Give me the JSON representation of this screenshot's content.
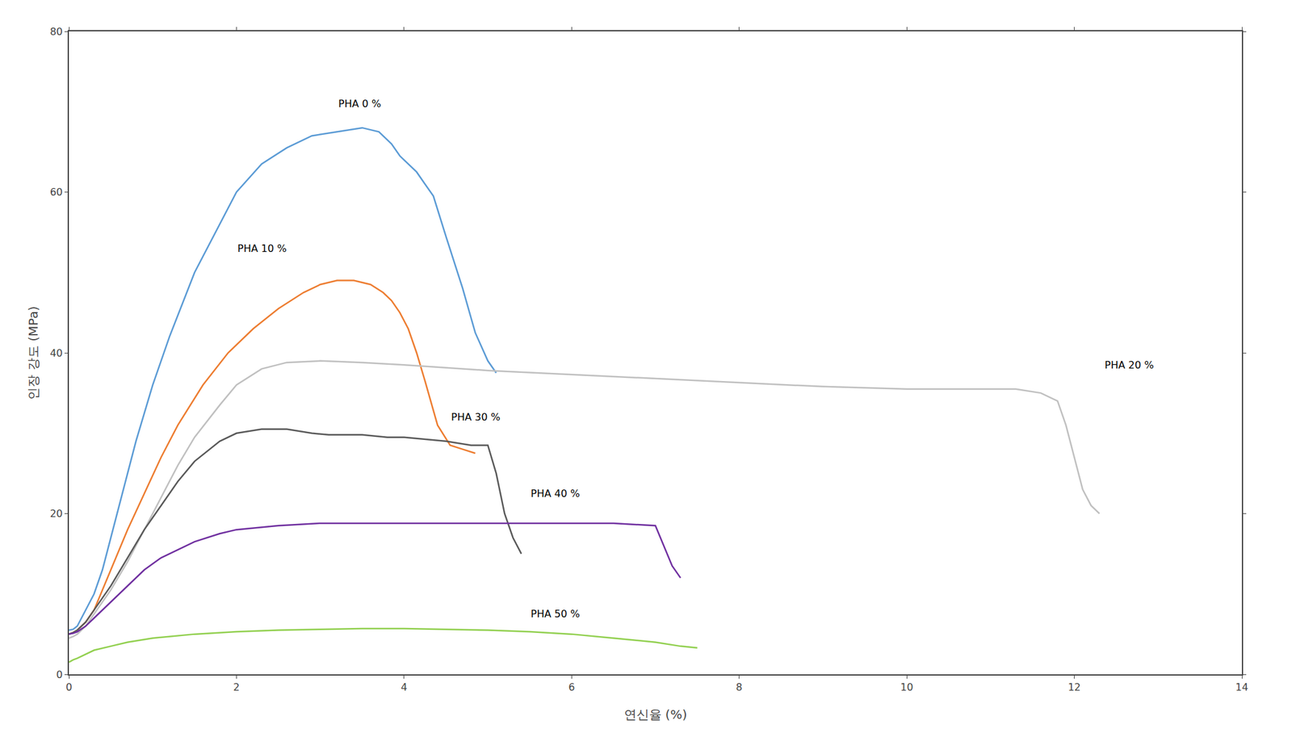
{
  "chart_data": {
    "type": "line",
    "x_label": "연신율 (%)",
    "y_label": "인장 강도 (MPa)",
    "xlim": [
      0,
      14
    ],
    "ylim": [
      0,
      80
    ],
    "xticks": [
      0,
      2,
      4,
      6,
      8,
      10,
      12,
      14
    ],
    "yticks": [
      0,
      20,
      40,
      60,
      80
    ],
    "grid": false,
    "series": [
      {
        "name": "PHA 0 %",
        "color": "#5B9BD5",
        "x": [
          0.0,
          0.05,
          0.1,
          0.15,
          0.2,
          0.3,
          0.4,
          0.5,
          0.6,
          0.7,
          0.8,
          1.0,
          1.2,
          1.5,
          1.8,
          2.0,
          2.3,
          2.6,
          2.9,
          3.2,
          3.5,
          3.7,
          3.85,
          3.95,
          4.05,
          4.15,
          4.25,
          4.35,
          4.5,
          4.7,
          4.85,
          5.0,
          5.1
        ],
        "values": [
          5.5,
          5.6,
          6.0,
          7.0,
          8.0,
          10.0,
          13.0,
          17.0,
          21.0,
          25.0,
          29.0,
          36.0,
          42.0,
          50.0,
          56.0,
          60.0,
          63.5,
          65.5,
          67.0,
          67.5,
          68.0,
          67.5,
          66.0,
          64.5,
          63.5,
          62.5,
          61.0,
          59.5,
          54.5,
          48.0,
          42.5,
          39.0,
          37.5
        ]
      },
      {
        "name": "PHA 10 %",
        "color": "#ED7D31",
        "x": [
          0.0,
          0.05,
          0.1,
          0.2,
          0.3,
          0.4,
          0.5,
          0.7,
          0.9,
          1.1,
          1.3,
          1.6,
          1.9,
          2.2,
          2.5,
          2.8,
          3.0,
          3.2,
          3.4,
          3.6,
          3.75,
          3.85,
          3.95,
          4.05,
          4.15,
          4.25,
          4.4,
          4.55,
          4.7,
          4.85
        ],
        "values": [
          5.0,
          5.2,
          5.5,
          6.5,
          8.0,
          10.5,
          13.0,
          18.0,
          22.5,
          27.0,
          31.0,
          36.0,
          40.0,
          43.0,
          45.5,
          47.5,
          48.5,
          49.0,
          49.0,
          48.5,
          47.5,
          46.5,
          45.0,
          43.0,
          40.0,
          36.5,
          31.0,
          28.5,
          28.0,
          27.5
        ]
      },
      {
        "name": "PHA 20 %",
        "color": "#C0C0C0",
        "x": [
          0.0,
          0.05,
          0.1,
          0.2,
          0.3,
          0.5,
          0.7,
          0.9,
          1.1,
          1.3,
          1.5,
          1.8,
          2.0,
          2.3,
          2.6,
          3.0,
          3.5,
          4.0,
          5.0,
          6.0,
          7.0,
          8.0,
          9.0,
          10.0,
          10.5,
          11.0,
          11.3,
          11.6,
          11.8,
          11.9,
          12.0,
          12.1,
          12.2,
          12.3
        ],
        "values": [
          4.5,
          4.7,
          5.0,
          6.0,
          7.5,
          10.5,
          14.0,
          18.0,
          22.0,
          26.0,
          29.5,
          33.5,
          36.0,
          38.0,
          38.8,
          39.0,
          38.8,
          38.5,
          37.8,
          37.3,
          36.8,
          36.3,
          35.8,
          35.5,
          35.5,
          35.5,
          35.5,
          35.0,
          34.0,
          31.0,
          27.0,
          23.0,
          21.0,
          20.0
        ]
      },
      {
        "name": "PHA 30 %",
        "color": "#595959",
        "x": [
          0.0,
          0.05,
          0.1,
          0.2,
          0.3,
          0.5,
          0.7,
          0.9,
          1.1,
          1.3,
          1.5,
          1.8,
          2.0,
          2.3,
          2.6,
          2.9,
          3.1,
          3.3,
          3.5,
          3.8,
          4.0,
          4.5,
          4.8,
          5.0,
          5.1,
          5.2,
          5.3,
          5.4
        ],
        "values": [
          5.0,
          5.2,
          5.5,
          6.5,
          8.0,
          11.0,
          14.5,
          18.0,
          21.0,
          24.0,
          26.5,
          29.0,
          30.0,
          30.5,
          30.5,
          30.0,
          29.8,
          29.8,
          29.8,
          29.5,
          29.5,
          29.0,
          28.5,
          28.5,
          25.0,
          20.0,
          17.0,
          15.0
        ]
      },
      {
        "name": "PHA 40 %",
        "color": "#7030A0",
        "x": [
          0.0,
          0.05,
          0.1,
          0.2,
          0.3,
          0.5,
          0.7,
          0.9,
          1.1,
          1.3,
          1.5,
          1.8,
          2.0,
          2.5,
          3.0,
          3.5,
          4.0,
          4.5,
          5.0,
          5.5,
          6.0,
          6.5,
          7.0,
          7.1,
          7.2,
          7.3
        ],
        "values": [
          5.0,
          5.1,
          5.3,
          6.0,
          7.0,
          9.0,
          11.0,
          13.0,
          14.5,
          15.5,
          16.5,
          17.5,
          18.0,
          18.5,
          18.8,
          18.8,
          18.8,
          18.8,
          18.8,
          18.8,
          18.8,
          18.8,
          18.5,
          16.0,
          13.5,
          12.0
        ]
      },
      {
        "name": "PHA 50 %",
        "color": "#92D050",
        "x": [
          0.0,
          0.05,
          0.1,
          0.2,
          0.3,
          0.5,
          0.7,
          1.0,
          1.5,
          2.0,
          2.5,
          3.0,
          3.5,
          4.0,
          4.5,
          5.0,
          5.5,
          6.0,
          6.5,
          7.0,
          7.3,
          7.5
        ],
        "values": [
          1.5,
          1.8,
          2.0,
          2.5,
          3.0,
          3.5,
          4.0,
          4.5,
          5.0,
          5.3,
          5.5,
          5.6,
          5.7,
          5.7,
          5.6,
          5.5,
          5.3,
          5.0,
          4.5,
          4.0,
          3.5,
          3.3
        ]
      }
    ],
    "annotations": [
      {
        "text": "PHA 0 %",
        "x": 3.2,
        "y": 71.0
      },
      {
        "text": "PHA 10 %",
        "x": 2.0,
        "y": 53.0
      },
      {
        "text": "PHA 20 %",
        "x": 12.35,
        "y": 38.5
      },
      {
        "text": "PHA 30 %",
        "x": 4.55,
        "y": 32.0
      },
      {
        "text": "PHA 40 %",
        "x": 5.5,
        "y": 22.5
      },
      {
        "text": "PHA 50 %",
        "x": 5.5,
        "y": 7.5
      }
    ]
  }
}
